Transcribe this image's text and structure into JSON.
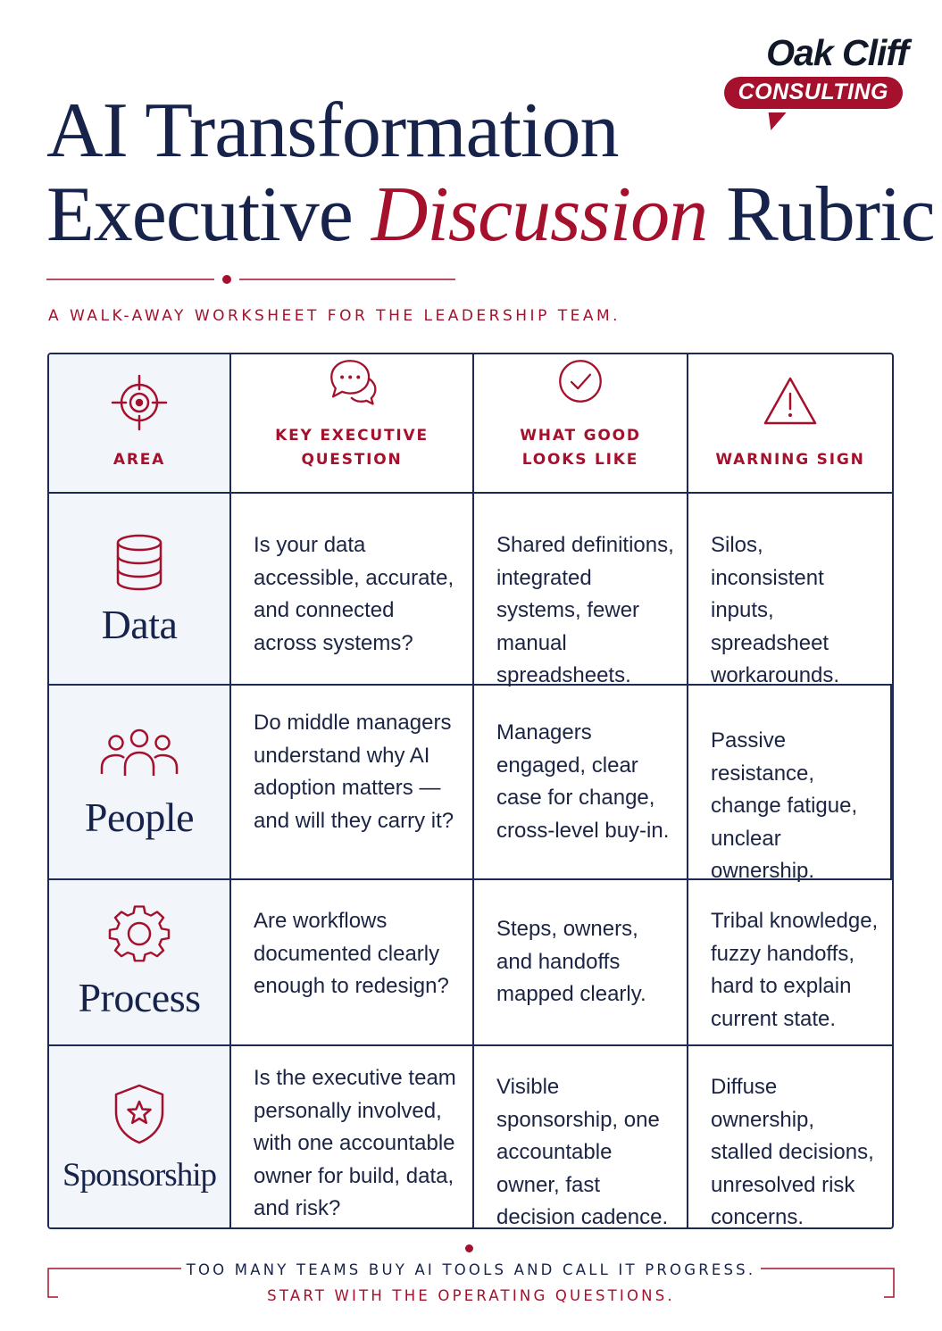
{
  "brand": {
    "name": "Oak Cliff",
    "tagline": "CONSULTING",
    "colors": {
      "navy": "#17234a",
      "accent": "#a5112c",
      "panel": "#f2f5fa"
    }
  },
  "title": {
    "line1": "AI Transformation",
    "line2_before": "Executive",
    "line2_accent": "Discussion",
    "line2_after": "Rubric"
  },
  "subtitle": "A WALK-AWAY WORKSHEET FOR THE LEADERSHIP TEAM.",
  "table": {
    "headers": [
      {
        "label": "AREA",
        "icon": "target-icon"
      },
      {
        "label": "KEY EXECUTIVE QUESTION",
        "icon": "chat-bubbles-icon"
      },
      {
        "label_line1": "WHAT GOOD",
        "label_line2": "LOOKS LIKE",
        "icon": "check-circle-icon"
      },
      {
        "label": "WARNING SIGN",
        "icon": "warning-triangle-icon"
      }
    ],
    "rows": [
      {
        "area": "Data",
        "icon": "database-icon",
        "question": "Is your data accessible, accurate, and connected across systems?",
        "good": "Shared definitions, integrated systems, fewer manual spreadsheets.",
        "warning": "Silos, inconsistent inputs, spreadsheet workarounds."
      },
      {
        "area": "People",
        "icon": "people-icon",
        "question": "Do middle managers understand why AI adoption matters — and will they carry it?",
        "good": "Managers engaged, clear case for change, cross-level buy-in.",
        "warning": "Passive resistance, change fatigue, unclear ownership."
      },
      {
        "area": "Process",
        "icon": "gear-icon",
        "question": "Are workflows documented clearly enough to redesign?",
        "good": "Steps, owners, and handoffs mapped clearly.",
        "warning": "Tribal knowledge, fuzzy handoffs, hard to explain current state."
      },
      {
        "area": "Sponsorship",
        "icon": "shield-star-icon",
        "question": "Is the executive team personally involved, with one accountable owner for build, data, and risk?",
        "good": "Visible sponsorship, one accountable owner, fast decision cadence.",
        "warning": "Diffuse ownership, stalled decisions, unresolved risk concerns."
      }
    ]
  },
  "footer": {
    "line1": "TOO MANY TEAMS BUY AI TOOLS AND CALL IT PROGRESS.",
    "line2": "START WITH THE OPERATING QUESTIONS."
  }
}
